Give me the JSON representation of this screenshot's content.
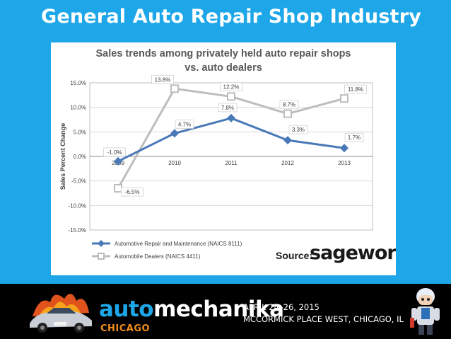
{
  "slide": {
    "title": "General Auto Repair Shop Industry"
  },
  "chart_data": {
    "type": "line",
    "title": "Sales trends among privately  held auto repair shops",
    "subtitle": "vs. auto dealers",
    "ylabel": "Sales Percent Change",
    "xlabel": "",
    "x": [
      "2009",
      "2010",
      "2011",
      "2012",
      "2013"
    ],
    "ylim": [
      -15,
      15
    ],
    "yticks": [
      15,
      10,
      5,
      0,
      -5,
      -10,
      -15
    ],
    "ytick_labels": [
      "15.0%",
      "10.0%",
      "5.0%",
      "0.0%",
      "-5.0%",
      "-10.0%",
      "-15.0%"
    ],
    "grid": true,
    "legend_position": "bottom-left",
    "series": [
      {
        "name": "Automotive Repair and Maintenance (NAICS 8111)",
        "values": [
          -1.0,
          4.7,
          7.8,
          3.3,
          1.7
        ],
        "labels": [
          "-1.0%",
          "4.7%",
          "7.8%",
          "3.3%",
          "1.7%"
        ],
        "color": "#4a79b8",
        "marker": "diamond"
      },
      {
        "name": "Automobile Dealers (NAICS 4411)",
        "values": [
          -6.5,
          13.8,
          12.2,
          8.7,
          11.8
        ],
        "labels": [
          "-6.5%",
          "13.8%",
          "12.2%",
          "8.7%",
          "11.8%"
        ],
        "color": "#bdbdbd",
        "marker": "square"
      }
    ],
    "source_prefix": "Source:",
    "source_brand": "sageworks"
  },
  "footer": {
    "brand_auto": "auto",
    "brand_mech": "mechanika",
    "brand_city": "CHICAGO",
    "event_date": "APRIL 24–26, 2015",
    "event_venue": "MCCORMICK PLACE WEST, CHICAGO, IL"
  },
  "colors": {
    "background": "#1ea7e8",
    "footer": "#000000",
    "accent": "#f28c1b"
  }
}
